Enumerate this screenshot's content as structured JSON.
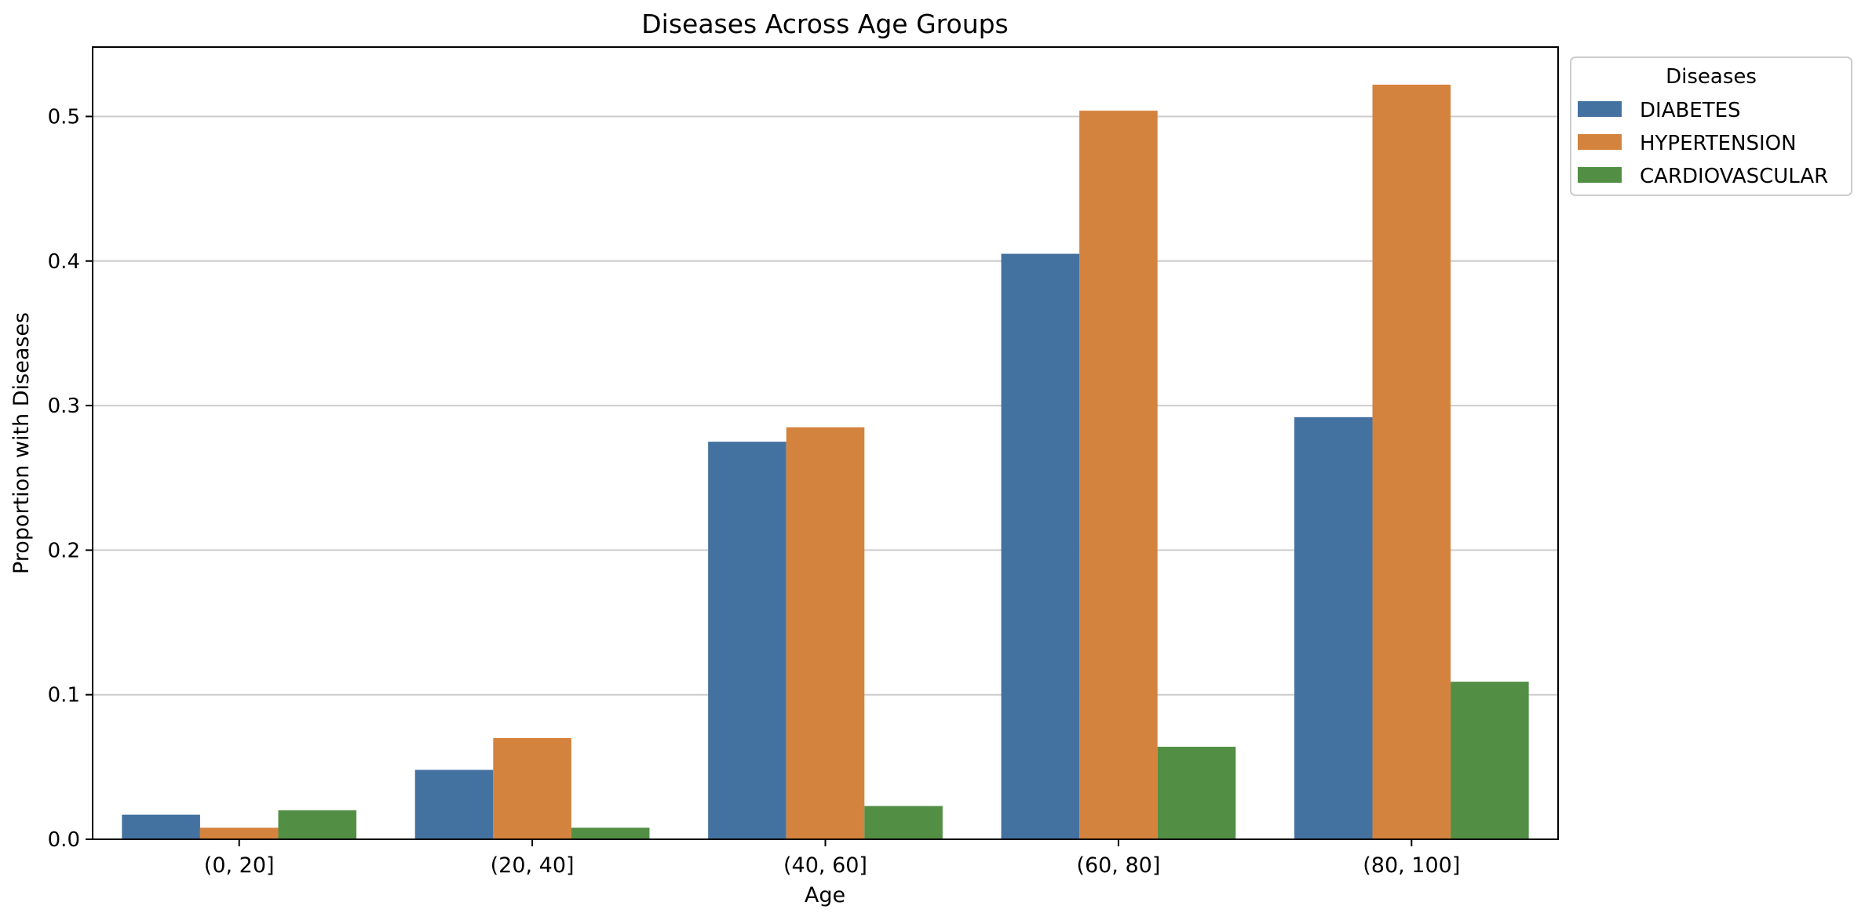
{
  "chart_data": {
    "type": "bar",
    "title": "Diseases Across Age Groups",
    "xlabel": "Age",
    "ylabel": "Proportion with Diseases",
    "categories": [
      "(0, 20]",
      "(20, 40]",
      "(40, 60]",
      "(60, 80]",
      "(80, 100]"
    ],
    "series": [
      {
        "name": "DIABETES",
        "color": "#4472a0",
        "values": [
          0.017,
          0.048,
          0.275,
          0.405,
          0.292
        ]
      },
      {
        "name": "HYPERTENSION",
        "color": "#d4833e",
        "values": [
          0.008,
          0.07,
          0.285,
          0.504,
          0.522
        ]
      },
      {
        "name": "CARDIOVASCULAR",
        "color": "#528f45",
        "values": [
          0.02,
          0.008,
          0.023,
          0.064,
          0.109
        ]
      }
    ],
    "ylim": [
      0,
      0.548
    ],
    "yticks": [
      0.0,
      0.1,
      0.2,
      0.3,
      0.4,
      0.5
    ],
    "ytick_labels": [
      "0.0",
      "0.1",
      "0.2",
      "0.3",
      "0.4",
      "0.5"
    ],
    "grid": {
      "y": true,
      "x": false
    },
    "legend": {
      "title": "Diseases",
      "placement": "outside-top-right"
    }
  }
}
